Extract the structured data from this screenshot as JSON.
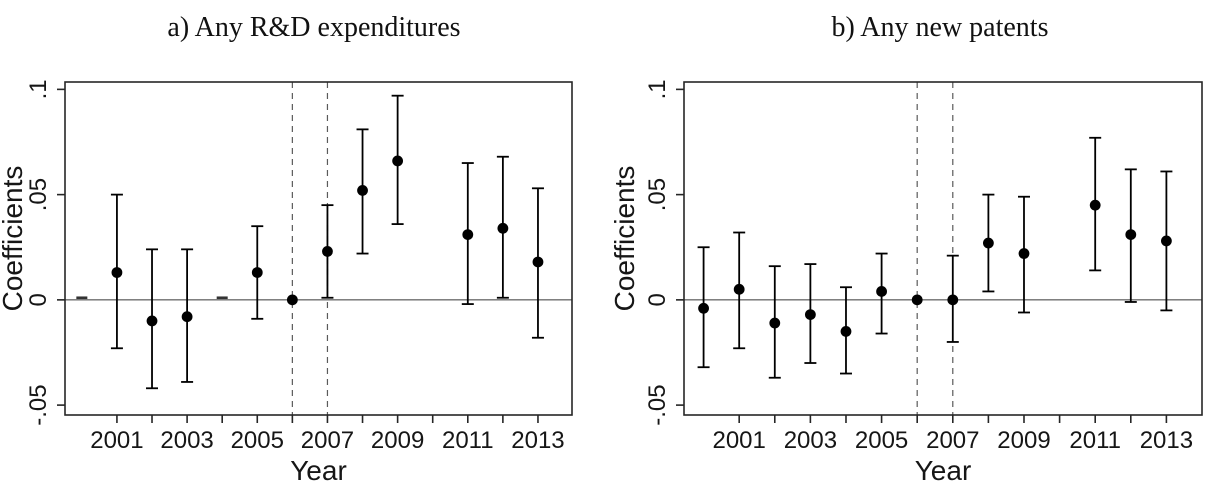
{
  "figure": {
    "background": "#ffffff",
    "description_visible_text_only": true
  },
  "colors": {
    "marker": "#000000",
    "error_bar": "#000000",
    "frame": "#262626",
    "tick": "#262626",
    "zero_line": "#6e6e6e",
    "dashed_line": "#5a5a5a",
    "text": "#111111"
  },
  "chart_data": [
    {
      "type": "scatter",
      "subtype": "coefficient-plot-with-95ci-error-bars",
      "title": "a) Any R&D expenditures",
      "xlabel": "Year",
      "ylabel": "Coefficients",
      "xlim": [
        1999.52,
        2013.97
      ],
      "ylim": [
        -0.0547,
        0.1035
      ],
      "grid": false,
      "legend": "none",
      "zero_hline": true,
      "reference_vlines": [
        2006,
        2007
      ],
      "y_ticks": [
        {
          "value": 0.1,
          "label": ".1"
        },
        {
          "value": 0.05,
          "label": ".05"
        },
        {
          "value": 0,
          "label": "0"
        },
        {
          "value": -0.05,
          "label": "-.05"
        }
      ],
      "x_ticks": [
        {
          "year": 2001,
          "label": "2001"
        },
        {
          "year": 2002,
          "label": ""
        },
        {
          "year": 2003,
          "label": "2003"
        },
        {
          "year": 2004,
          "label": ""
        },
        {
          "year": 2005,
          "label": "2005"
        },
        {
          "year": 2006,
          "label": ""
        },
        {
          "year": 2007,
          "label": "2007"
        },
        {
          "year": 2008,
          "label": ""
        },
        {
          "year": 2009,
          "label": "2009"
        },
        {
          "year": 2010,
          "label": ""
        },
        {
          "year": 2011,
          "label": "2011"
        },
        {
          "year": 2012,
          "label": ""
        },
        {
          "year": 2013,
          "label": "2013"
        }
      ],
      "points": [
        {
          "year": 2000,
          "coef": 0.001,
          "lo": null,
          "hi": null,
          "marker": "dash",
          "reference": false
        },
        {
          "year": 2001,
          "coef": 0.013,
          "lo": -0.023,
          "hi": 0.05,
          "marker": "dot",
          "reference": false
        },
        {
          "year": 2002,
          "coef": -0.01,
          "lo": -0.042,
          "hi": 0.024,
          "marker": "dot",
          "reference": false
        },
        {
          "year": 2003,
          "coef": -0.008,
          "lo": -0.039,
          "hi": 0.024,
          "marker": "dot",
          "reference": false
        },
        {
          "year": 2004,
          "coef": 0.001,
          "lo": null,
          "hi": null,
          "marker": "dash",
          "reference": false
        },
        {
          "year": 2005,
          "coef": 0.013,
          "lo": -0.009,
          "hi": 0.035,
          "marker": "dot",
          "reference": false
        },
        {
          "year": 2006,
          "coef": 0.0,
          "lo": null,
          "hi": null,
          "marker": "dot",
          "reference": true
        },
        {
          "year": 2007,
          "coef": 0.023,
          "lo": 0.001,
          "hi": 0.045,
          "marker": "dot",
          "reference": false
        },
        {
          "year": 2008,
          "coef": 0.052,
          "lo": 0.022,
          "hi": 0.081,
          "marker": "dot",
          "reference": false
        },
        {
          "year": 2009,
          "coef": 0.066,
          "lo": 0.036,
          "hi": 0.097,
          "marker": "dot",
          "reference": false
        },
        {
          "year": 2011,
          "coef": 0.031,
          "lo": -0.002,
          "hi": 0.065,
          "marker": "dot",
          "reference": false
        },
        {
          "year": 2012,
          "coef": 0.034,
          "lo": 0.001,
          "hi": 0.068,
          "marker": "dot",
          "reference": false
        },
        {
          "year": 2013,
          "coef": 0.018,
          "lo": -0.018,
          "hi": 0.053,
          "marker": "dot",
          "reference": false
        }
      ]
    },
    {
      "type": "scatter",
      "subtype": "coefficient-plot-with-95ci-error-bars",
      "title": "b) Any new patents",
      "xlabel": "Year",
      "ylabel": "Coefficients",
      "xlim": [
        1999.45,
        2014.0
      ],
      "ylim": [
        -0.0547,
        0.1035
      ],
      "grid": false,
      "legend": "none",
      "zero_hline": true,
      "reference_vlines": [
        2006,
        2007
      ],
      "y_ticks": [
        {
          "value": 0.1,
          "label": ".1"
        },
        {
          "value": 0.05,
          "label": ".05"
        },
        {
          "value": 0,
          "label": "0"
        },
        {
          "value": -0.05,
          "label": "-.05"
        }
      ],
      "x_ticks": [
        {
          "year": 2001,
          "label": "2001"
        },
        {
          "year": 2002,
          "label": ""
        },
        {
          "year": 2003,
          "label": "2003"
        },
        {
          "year": 2004,
          "label": ""
        },
        {
          "year": 2005,
          "label": "2005"
        },
        {
          "year": 2006,
          "label": ""
        },
        {
          "year": 2007,
          "label": "2007"
        },
        {
          "year": 2008,
          "label": ""
        },
        {
          "year": 2009,
          "label": "2009"
        },
        {
          "year": 2010,
          "label": ""
        },
        {
          "year": 2011,
          "label": "2011"
        },
        {
          "year": 2012,
          "label": ""
        },
        {
          "year": 2013,
          "label": "2013"
        }
      ],
      "points": [
        {
          "year": 2000,
          "coef": -0.004,
          "lo": -0.032,
          "hi": 0.025,
          "marker": "dot",
          "reference": false
        },
        {
          "year": 2001,
          "coef": 0.005,
          "lo": -0.023,
          "hi": 0.032,
          "marker": "dot",
          "reference": false
        },
        {
          "year": 2002,
          "coef": -0.011,
          "lo": -0.037,
          "hi": 0.016,
          "marker": "dot",
          "reference": false
        },
        {
          "year": 2003,
          "coef": -0.007,
          "lo": -0.03,
          "hi": 0.017,
          "marker": "dot",
          "reference": false
        },
        {
          "year": 2004,
          "coef": -0.015,
          "lo": -0.035,
          "hi": 0.006,
          "marker": "dot",
          "reference": false
        },
        {
          "year": 2005,
          "coef": 0.004,
          "lo": -0.016,
          "hi": 0.022,
          "marker": "dot",
          "reference": false
        },
        {
          "year": 2006,
          "coef": 0.0,
          "lo": null,
          "hi": null,
          "marker": "dot",
          "reference": true
        },
        {
          "year": 2007,
          "coef": 0.0,
          "lo": -0.02,
          "hi": 0.021,
          "marker": "dot",
          "reference": false
        },
        {
          "year": 2008,
          "coef": 0.027,
          "lo": 0.004,
          "hi": 0.05,
          "marker": "dot",
          "reference": false
        },
        {
          "year": 2009,
          "coef": 0.022,
          "lo": -0.006,
          "hi": 0.049,
          "marker": "dot",
          "reference": false
        },
        {
          "year": 2011,
          "coef": 0.045,
          "lo": 0.014,
          "hi": 0.077,
          "marker": "dot",
          "reference": false
        },
        {
          "year": 2012,
          "coef": 0.031,
          "lo": -0.001,
          "hi": 0.062,
          "marker": "dot",
          "reference": false
        },
        {
          "year": 2013,
          "coef": 0.028,
          "lo": -0.005,
          "hi": 0.061,
          "marker": "dot",
          "reference": false
        }
      ]
    }
  ]
}
